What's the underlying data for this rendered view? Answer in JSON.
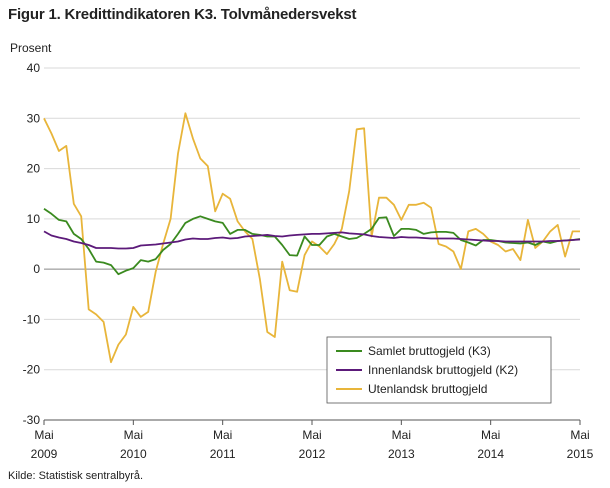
{
  "title": "Figur 1. Kredittindikatoren K3. Tolvmånedersvekst",
  "source": "Kilde: Statistisk sentralbyrå.",
  "chart_data": {
    "type": "line",
    "ylabel": "Prosent",
    "xlabel": "",
    "ylim": [
      -30,
      40
    ],
    "yticks": [
      -30,
      -20,
      -10,
      0,
      10,
      20,
      30,
      40
    ],
    "grid": true,
    "legend_placement": "bottom-right",
    "xticks": [
      {
        "index": 0,
        "label_month": "Mai",
        "label_year": "2009"
      },
      {
        "index": 12,
        "label_month": "Mai",
        "label_year": "2010"
      },
      {
        "index": 24,
        "label_month": "Mai",
        "label_year": "2011"
      },
      {
        "index": 36,
        "label_month": "Mai",
        "label_year": "2012"
      },
      {
        "index": 48,
        "label_month": "Mai",
        "label_year": "2013"
      },
      {
        "index": 60,
        "label_month": "Mai",
        "label_year": "2014"
      },
      {
        "index": 72,
        "label_month": "Mai",
        "label_year": "2015"
      }
    ],
    "x_start": "2009-05",
    "x_end": "2015-05",
    "series": [
      {
        "name": "Samlet bruttogjeld (K3)",
        "color": "#3a8a1f",
        "values": [
          12,
          11,
          9.8,
          9.5,
          7,
          6,
          4,
          1.5,
          1.3,
          0.8,
          -1,
          -0.3,
          0.2,
          1.8,
          1.5,
          2,
          3.8,
          5,
          7,
          9.2,
          10,
          10.5,
          10,
          9.5,
          9.2,
          7,
          7.8,
          7.8,
          7,
          6.8,
          6.5,
          6.5,
          4.8,
          2.8,
          2.7,
          6.5,
          4.8,
          4.8,
          6.5,
          7,
          6.5,
          6,
          6.2,
          7,
          8,
          10.2,
          10.3,
          6.6,
          8,
          8,
          7.8,
          7,
          7.3,
          7.4,
          7.4,
          7.2,
          5.8,
          5.3,
          4.7,
          5.8,
          5.8,
          5.6,
          5.3,
          5.2,
          5.1,
          5.3,
          4.8,
          5.5,
          5.2,
          5.6,
          5.7,
          5.8,
          6
        ]
      },
      {
        "name": "Innenlandsk bruttogjeld (K2)",
        "color": "#5c1a7a",
        "values": [
          7.5,
          6.7,
          6.3,
          6,
          5.5,
          5.2,
          4.8,
          4.2,
          4.2,
          4.2,
          4.1,
          4.1,
          4.2,
          4.7,
          4.8,
          4.9,
          5.1,
          5.3,
          5.5,
          5.9,
          6.1,
          6,
          6,
          6.2,
          6.3,
          6.1,
          6.2,
          6.5,
          6.6,
          6.7,
          6.8,
          6.6,
          6.5,
          6.7,
          6.8,
          6.9,
          7,
          7,
          7.1,
          7.2,
          7.3,
          7.1,
          7,
          6.9,
          6.6,
          6.4,
          6.3,
          6.2,
          6.4,
          6.3,
          6.3,
          6.2,
          6.1,
          6.1,
          6.1,
          6.1,
          6,
          5.9,
          5.8,
          5.7,
          5.6,
          5.6,
          5.5,
          5.5,
          5.5,
          5.5,
          5.5,
          5.5,
          5.6,
          5.6,
          5.7,
          5.8,
          5.9
        ]
      },
      {
        "name": "Utenlandsk bruttogjeld",
        "color": "#e8b53a",
        "values": [
          30,
          27,
          23.5,
          24.5,
          13,
          10.5,
          -8,
          -9,
          -10.5,
          -18.5,
          -15,
          -13,
          -7.5,
          -9.5,
          -8.5,
          -0.5,
          5,
          10,
          23,
          31,
          26,
          22,
          20.5,
          11.5,
          15,
          14,
          9.5,
          7.5,
          6,
          -2,
          -12.5,
          -13.5,
          1.5,
          -4.2,
          -4.5,
          2.8,
          5.5,
          4.5,
          3,
          5,
          8,
          15.5,
          27.8,
          28,
          6.5,
          14.2,
          14.2,
          12.8,
          9.8,
          12.8,
          12.8,
          13.2,
          12.2,
          5,
          4.5,
          3.5,
          0,
          7.5,
          8,
          7,
          5.5,
          4.8,
          3.5,
          4,
          1.8,
          9.8,
          4.2,
          5.5,
          7.5,
          8.8,
          2.5,
          7.5,
          7.5
        ]
      }
    ]
  }
}
